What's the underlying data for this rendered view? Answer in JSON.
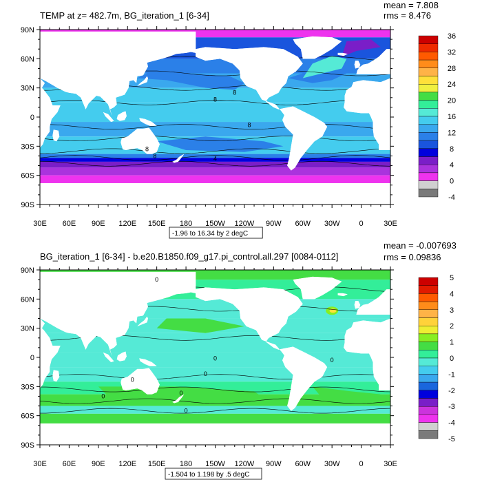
{
  "chart_data": [
    {
      "type": "heatmap",
      "title": "TEMP at z= 482.7m, BG_iteration_1 [6-34]",
      "stats": [
        "mean = 7.808",
        "rms = 8.476"
      ],
      "x_ticks": [
        "30E",
        "60E",
        "90E",
        "120E",
        "150E",
        "180",
        "150W",
        "120W",
        "90W",
        "60W",
        "30W",
        "0",
        "30E"
      ],
      "y_ticks": [
        "90N",
        "60N",
        "30N",
        "0",
        "30S",
        "60S",
        "90S"
      ],
      "xlim_deg": [
        30,
        390
      ],
      "ylim_deg": [
        -90,
        90
      ],
      "contour_note": "-1.96 to 16.34 by 2 degC",
      "colorbar_labels": [
        "36",
        "32",
        "28",
        "24",
        "20",
        "16",
        "12",
        "8",
        "4",
        "0",
        "-4"
      ],
      "colorbar_colors": [
        "#cc0000",
        "#ee2a00",
        "#ff5a00",
        "#ff8c1a",
        "#ffb347",
        "#ffe03a",
        "#f0f040",
        "#44dd44",
        "#33ee99",
        "#55ead6",
        "#44ccee",
        "#3aa8ee",
        "#2b80e8",
        "#1a55dd",
        "#0000dd",
        "#7a1ec8",
        "#aa33dd",
        "#ee33ee",
        "#d0d0d0",
        "#7a7a7a"
      ],
      "contour_labels": [
        "8",
        "8",
        "8",
        "8",
        "8",
        "4"
      ]
    },
    {
      "type": "heatmap",
      "title": "BG_iteration_1 [6-34] - b.e20.B1850.f09_g17.pi_control.all.297 [0084-0112]",
      "stats": [
        "mean = -0.007693",
        "rms = 0.09836"
      ],
      "x_ticks": [
        "30E",
        "60E",
        "90E",
        "120E",
        "150E",
        "180",
        "150W",
        "120W",
        "90W",
        "60W",
        "30W",
        "0",
        "30E"
      ],
      "y_ticks": [
        "90N",
        "60N",
        "30N",
        "0",
        "30S",
        "60S",
        "90S"
      ],
      "xlim_deg": [
        30,
        390
      ],
      "ylim_deg": [
        -90,
        90
      ],
      "contour_note": "-1.504 to 1.198 by .5 degC",
      "colorbar_labels": [
        "5",
        "4",
        "3",
        "2",
        "1",
        "0",
        "-1",
        "-2",
        "-3",
        "-4",
        "-5"
      ],
      "colorbar_colors": [
        "#cc0000",
        "#e11a00",
        "#ff5a00",
        "#ff8c1a",
        "#ffb347",
        "#ffd23a",
        "#eeee33",
        "#88ee22",
        "#44dd44",
        "#33ee99",
        "#55ead6",
        "#44ccee",
        "#3aa8ee",
        "#1a66dd",
        "#0000dd",
        "#7a1ec8",
        "#cc33dd",
        "#ee33ee",
        "#d0d0d0",
        "#7a7a7a"
      ],
      "contour_labels": [
        "0",
        "0",
        "0",
        "0",
        "0",
        "0",
        "0",
        "0"
      ]
    }
  ]
}
